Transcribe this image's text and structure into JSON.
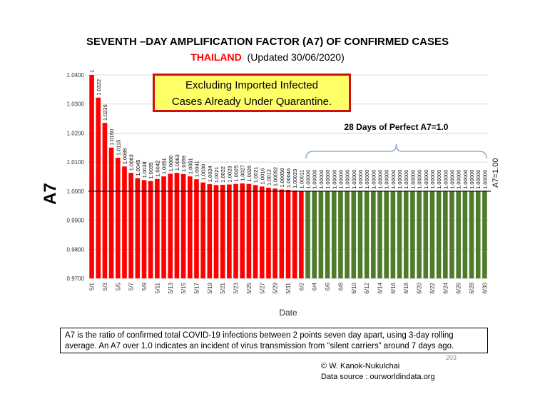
{
  "chart_data": {
    "type": "bar",
    "title": "SEVENTH –DAY AMPLIFICATION FACTOR (A7) OF CONFIRMED CASES",
    "subtitle_country": "THAILAND",
    "subtitle_updated": "(Updated 30/06/2020)",
    "xlabel": "Date",
    "ylabel": "A7",
    "ylim": [
      0.97,
      1.04
    ],
    "yticks": [
      "0.9700",
      "0.9800",
      "0.9900",
      "1.0000",
      "1.0100",
      "1.0200",
      "1.0300",
      "1.0400"
    ],
    "categories": [
      "5/1",
      "5/2",
      "5/3",
      "5/4",
      "5/5",
      "5/6",
      "5/7",
      "5/8",
      "5/9",
      "5/10",
      "5/11",
      "5/12",
      "5/13",
      "5/14",
      "5/15",
      "5/16",
      "5/17",
      "5/18",
      "5/19",
      "5/20",
      "5/21",
      "5/22",
      "5/23",
      "5/24",
      "5/25",
      "5/26",
      "5/27",
      "5/28",
      "5/29",
      "5/30",
      "5/31",
      "6/1",
      "6/2",
      "6/3",
      "6/4",
      "6/5",
      "6/6",
      "6/7",
      "6/8",
      "6/9",
      "6/10",
      "6/11",
      "6/12",
      "6/13",
      "6/14",
      "6/15",
      "6/16",
      "6/17",
      "6/18",
      "6/19",
      "6/20",
      "6/21",
      "6/22",
      "6/23",
      "6/24",
      "6/25",
      "6/26",
      "6/27",
      "6/28",
      "6/29",
      "6/30"
    ],
    "values": [
      1.04,
      1.0322,
      1.0235,
      1.015,
      1.0115,
      1.0085,
      1.0063,
      1.0045,
      1.0038,
      1.0035,
      1.0042,
      1.0051,
      1.006,
      1.0063,
      1.0059,
      1.0051,
      1.0041,
      1.003,
      1.0024,
      1.0021,
      1.0022,
      1.0023,
      1.0025,
      1.0027,
      1.0025,
      1.0021,
      1.0016,
      1.0012,
      1.00092,
      1.00058,
      1.00046,
      1.00023,
      1.00011,
      1.0,
      1.0,
      1.0,
      1.0,
      1.0,
      1.0,
      1.0,
      1.0,
      1.0,
      1.0,
      1.0,
      1.0,
      1.0,
      1.0,
      1.0,
      1.0,
      1.0,
      1.0,
      1.0,
      1.0,
      1.0,
      1.0,
      1.0,
      1.0,
      1.0,
      1.0,
      1.0,
      1.0
    ],
    "value_labels": [
      "1",
      "1.0322",
      "1.0235",
      "1.0150",
      "1.0115",
      "1.0085",
      "1.0063",
      "1.0045",
      "1.0038",
      "1.0035",
      "1.0042",
      "1.0051",
      "1.0060",
      "1.0063",
      "1.0059",
      "1.0051",
      "1.0041",
      "1.0030",
      "1.0024",
      "1.0021",
      "1.0022",
      "1.0023",
      "1.0025",
      "1.0027",
      "1.0025",
      "1.0021",
      "1.0016",
      "1.0012",
      "1.00092",
      "1.00058",
      "1.00046",
      "1.00023",
      "1.00011",
      "1.00000",
      "1.00000",
      "1.00000",
      "1.00000",
      "1.00000",
      "1.00000",
      "1.00000",
      "1.00000",
      "1.00000",
      "1.00000",
      "1.00000",
      "1.00000",
      "1.00000",
      "1.00000",
      "1.00000",
      "1.00000",
      "1.00000",
      "1.00000",
      "1.00000",
      "1.00000",
      "1.00000",
      "1.00000",
      "1.00000",
      "1.00000",
      "1.00000",
      "1.00000",
      "1.00000",
      "1.00000"
    ],
    "perfect_start_index": 33,
    "colors": {
      "red": "#ff0000",
      "green": "#4e7c2a",
      "bracket": "#7f9fc8",
      "grid": "#cccccc"
    },
    "reference_line_label": "A7=1.00",
    "bracket_label": "28 Days of Perfect A7=1.0",
    "grid": true,
    "legend": "none"
  },
  "callout": {
    "line1": "Excluding Imported Infected",
    "line2": "Cases Already Under Quarantine."
  },
  "note": "A7 is the ratio of confirmed total COVID-19 infections between 2 points seven day apart, using 3-day rolling average. An A7 over 1.0 indicates an incident of virus transmission from  “silent carriers” around 7 days ago.",
  "page_number": "203",
  "credit": {
    "author": "© W. Kanok-Nukulchai",
    "source": "Data source : ourworldindata.org"
  }
}
